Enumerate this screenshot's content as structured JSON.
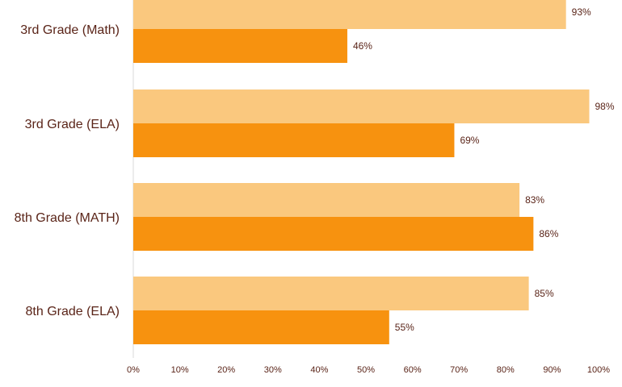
{
  "chart_data": {
    "type": "bar",
    "orientation": "horizontal",
    "categories": [
      "3rd Grade (Math)",
      "3rd Grade (ELA)",
      "8th Grade (MATH)",
      "8th Grade (ELA)"
    ],
    "series": [
      {
        "values": [
          93,
          98,
          83,
          85
        ],
        "color": "#fac87e"
      },
      {
        "values": [
          46,
          69,
          86,
          55
        ],
        "color": "#f7920f"
      }
    ],
    "data_labels": [
      [
        "93%",
        "98%",
        "83%",
        "85%"
      ],
      [
        "46%",
        "69%",
        "86%",
        "55%"
      ]
    ],
    "xlim": [
      0,
      100
    ],
    "x_ticks": [
      "0%",
      "10%",
      "20%",
      "30%",
      "40%",
      "50%",
      "60%",
      "70%",
      "80%",
      "90%",
      "100%"
    ],
    "grid": false,
    "legend": "none"
  }
}
